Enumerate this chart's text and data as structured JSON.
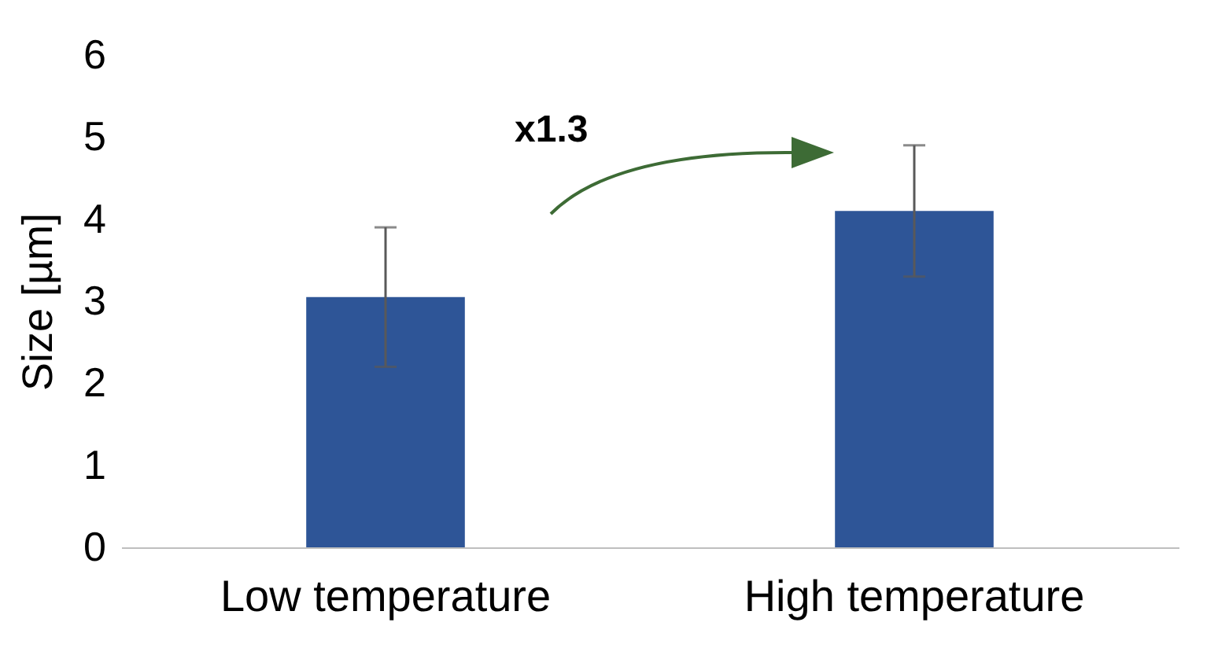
{
  "chart_data": {
    "type": "bar",
    "ylabel": "Size [µm]",
    "categories": [
      "Low temperature",
      "High temperature"
    ],
    "values": [
      3.05,
      4.1
    ],
    "color": "#2e5597",
    "errors": [
      [
        2.2,
        3.9
      ],
      [
        3.3,
        4.9
      ]
    ],
    "ylim": [
      0,
      6
    ],
    "yticks": [
      0,
      1,
      2,
      3,
      4,
      5,
      6
    ],
    "grid": false,
    "annotations": [
      "x1.3"
    ]
  }
}
